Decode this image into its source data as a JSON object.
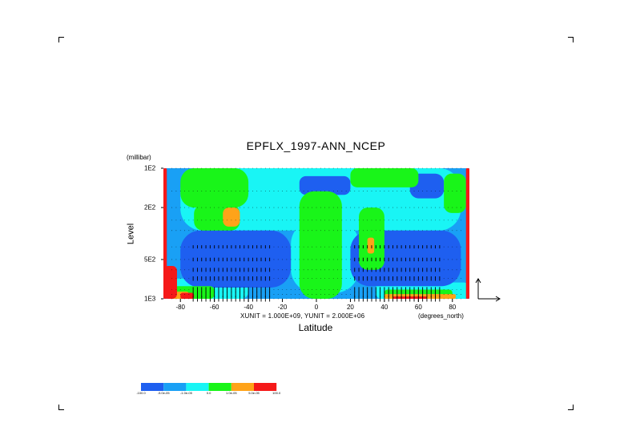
{
  "chart_data": {
    "type": "heatmap",
    "title": "EPFLX_1997-ANN_NCEP",
    "xlabel": "Latitude",
    "ylabel": "Level",
    "y_unit": "(millibar)",
    "x_unit": "(degrees_north)",
    "vector_units_text": "XUNIT = 1.000E+09, YUNIT = 2.000E+06",
    "x_range": [
      -90,
      90
    ],
    "y_range": [
      1000,
      100
    ],
    "y_scale": "log",
    "x_ticks": [
      {
        "value": -80,
        "label": "-80"
      },
      {
        "value": -60,
        "label": "-60"
      },
      {
        "value": -40,
        "label": "-40"
      },
      {
        "value": -20,
        "label": "-20"
      },
      {
        "value": 0,
        "label": "0"
      },
      {
        "value": 20,
        "label": "20"
      },
      {
        "value": 40,
        "label": "40"
      },
      {
        "value": 60,
        "label": "60"
      },
      {
        "value": 80,
        "label": "80"
      }
    ],
    "y_ticks": [
      {
        "value": 100,
        "label": "1E2"
      },
      {
        "value": 200,
        "label": "2E2"
      },
      {
        "value": 500,
        "label": "5E2"
      },
      {
        "value": 1000,
        "label": "1E3"
      }
    ],
    "levels_mb": [
      100,
      150,
      200,
      250,
      300,
      400,
      500,
      600,
      700,
      850,
      925,
      1000
    ],
    "colorbar": {
      "labels": [
        "-100.0",
        "-5.0e-05",
        "-1.0e-05",
        "0.0",
        "1.0e-05",
        "5.0e-05",
        "100.0"
      ],
      "colors": [
        "#1e5ff0",
        "#19a0f5",
        "#19f5f5",
        "#19f519",
        "#ffa319",
        "#f51919"
      ]
    },
    "grid": false,
    "legend": "colorbar bottom-left",
    "regions": [
      {
        "color": "#19a0f5",
        "lat": [
          -90,
          90
        ],
        "p": [
          100,
          1000
        ]
      },
      {
        "color": "#19f5f5",
        "lat": [
          -80,
          85
        ],
        "p": [
          100,
          300
        ]
      },
      {
        "color": "#19f5f5",
        "lat": [
          -15,
          25
        ],
        "p": [
          250,
          900
        ]
      },
      {
        "color": "#19f5f5",
        "lat": [
          -90,
          -40
        ],
        "p": [
          700,
          1000
        ]
      },
      {
        "color": "#19f5f5",
        "lat": [
          35,
          90
        ],
        "p": [
          750,
          1000
        ]
      },
      {
        "color": "#1e5ff0",
        "lat": [
          -80,
          -15
        ],
        "p": [
          300,
          820
        ]
      },
      {
        "color": "#1e5ff0",
        "lat": [
          20,
          85
        ],
        "p": [
          300,
          800
        ]
      },
      {
        "color": "#1e5ff0",
        "lat": [
          -10,
          20
        ],
        "p": [
          115,
          160
        ]
      },
      {
        "color": "#1e5ff0",
        "lat": [
          55,
          75
        ],
        "p": [
          110,
          170
        ]
      },
      {
        "color": "#19f519",
        "lat": [
          -80,
          -40
        ],
        "p": [
          100,
          200
        ]
      },
      {
        "color": "#19f519",
        "lat": [
          -72,
          -45
        ],
        "p": [
          190,
          300
        ]
      },
      {
        "color": "#19f519",
        "lat": [
          -10,
          15
        ],
        "p": [
          150,
          1000
        ]
      },
      {
        "color": "#19f519",
        "lat": [
          20,
          60
        ],
        "p": [
          100,
          140
        ]
      },
      {
        "color": "#19f519",
        "lat": [
          25,
          40
        ],
        "p": [
          200,
          600
        ]
      },
      {
        "color": "#19f519",
        "lat": [
          75,
          88
        ],
        "p": [
          110,
          220
        ]
      },
      {
        "color": "#19f519",
        "lat": [
          -88,
          -60
        ],
        "p": [
          800,
          1000
        ]
      },
      {
        "color": "#19f519",
        "lat": [
          40,
          80
        ],
        "p": [
          850,
          1000
        ]
      },
      {
        "color": "#ffa319",
        "lat": [
          -55,
          -45
        ],
        "p": [
          200,
          280
        ]
      },
      {
        "color": "#ffa319",
        "lat": [
          30,
          34
        ],
        "p": [
          340,
          450
        ]
      },
      {
        "color": "#ffa319",
        "lat": [
          -85,
          -75
        ],
        "p": [
          880,
          1000
        ]
      },
      {
        "color": "#ffa319",
        "lat": [
          40,
          82
        ],
        "p": [
          920,
          1000
        ]
      },
      {
        "color": "#f51919",
        "lat": [
          -90,
          -88
        ],
        "p": [
          100,
          1000
        ]
      },
      {
        "color": "#f51919",
        "lat": [
          88,
          90
        ],
        "p": [
          100,
          1000
        ]
      },
      {
        "color": "#f51919",
        "lat": [
          -90,
          -82
        ],
        "p": [
          560,
          1000
        ]
      },
      {
        "color": "#f51919",
        "lat": [
          -80,
          -72
        ],
        "p": [
          900,
          1000
        ]
      },
      {
        "color": "#f51919",
        "lat": [
          45,
          65
        ],
        "p": [
          960,
          1000
        ]
      }
    ]
  }
}
